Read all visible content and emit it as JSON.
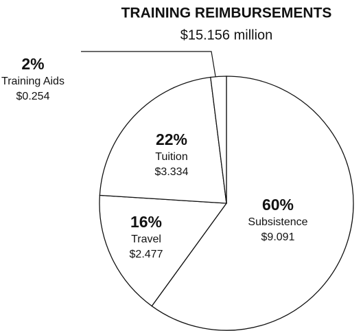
{
  "chart_data": {
    "type": "pie",
    "title": "TRAINING REIMBURSEMENTS",
    "subtitle": "$15.156 million",
    "categories": [
      "Subsistence",
      "Travel",
      "Tuition",
      "Training Aids"
    ],
    "values": [
      60,
      16,
      22,
      2
    ],
    "value_labels": [
      "60%",
      "16%",
      "22%",
      "2%"
    ],
    "amounts": [
      9.091,
      2.477,
      3.334,
      0.254
    ],
    "amount_labels": [
      "$9.091",
      "$2.477",
      "$3.334",
      "$0.254"
    ],
    "color": "#ffffff"
  }
}
